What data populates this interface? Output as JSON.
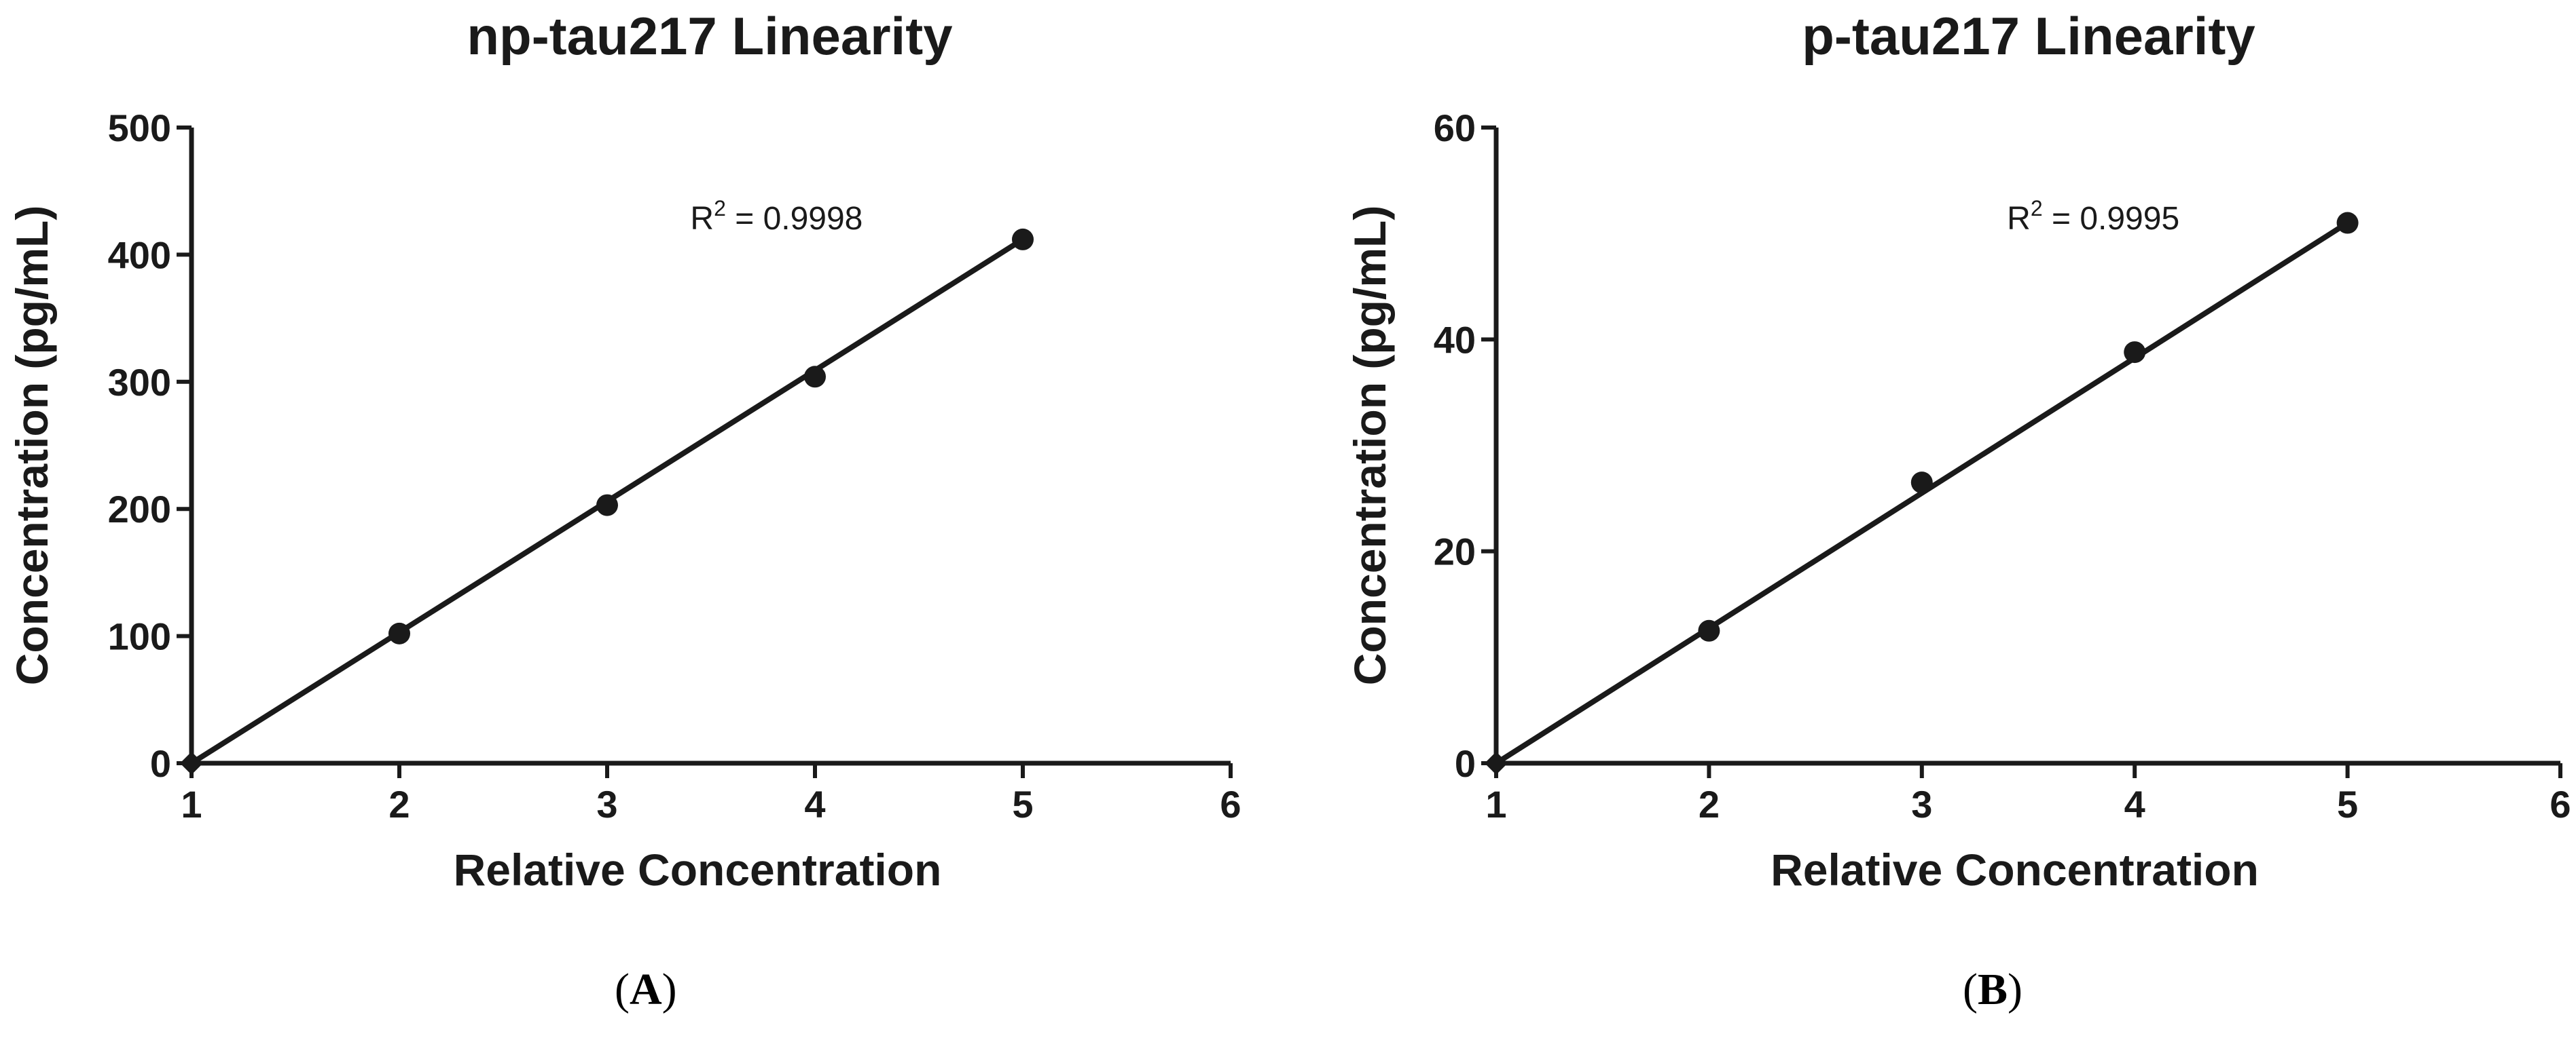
{
  "colors": {
    "ink": "#1a1a1a",
    "background": "#ffffff"
  },
  "chart_data": [
    {
      "type": "scatter",
      "panel_label": "A",
      "title": "np-tau217 Linearity",
      "xlabel": "Relative Concentration",
      "ylabel": "Concentration (pg/mL)",
      "xlim": [
        1,
        6
      ],
      "ylim": [
        0,
        500
      ],
      "xticks": [
        1,
        2,
        3,
        4,
        5,
        6
      ],
      "yticks": [
        0,
        100,
        200,
        300,
        400,
        500
      ],
      "x": [
        1,
        2,
        3,
        4,
        5
      ],
      "y": [
        0,
        102,
        203,
        304,
        412
      ],
      "fit_line": {
        "x": [
          1,
          5
        ],
        "y": [
          0,
          412
        ]
      },
      "annotation": {
        "prefix": "R",
        "sup": "2",
        "text": " = 0.9998"
      },
      "grid": false
    },
    {
      "type": "scatter",
      "panel_label": "B",
      "title": "p-tau217 Linearity",
      "xlabel": "Relative Concentration",
      "ylabel": "Concentration (pg/mL)",
      "xlim": [
        1,
        6
      ],
      "ylim": [
        0,
        60
      ],
      "xticks": [
        1,
        2,
        3,
        4,
        5,
        6
      ],
      "yticks": [
        0,
        20,
        40,
        60
      ],
      "x": [
        1,
        2,
        3,
        4,
        5
      ],
      "y": [
        0,
        12.5,
        26.5,
        38.8,
        51
      ],
      "fit_line": {
        "x": [
          1,
          5
        ],
        "y": [
          0,
          51
        ]
      },
      "annotation": {
        "prefix": "R",
        "sup": "2",
        "text": " = 0.9995"
      },
      "grid": false
    }
  ]
}
